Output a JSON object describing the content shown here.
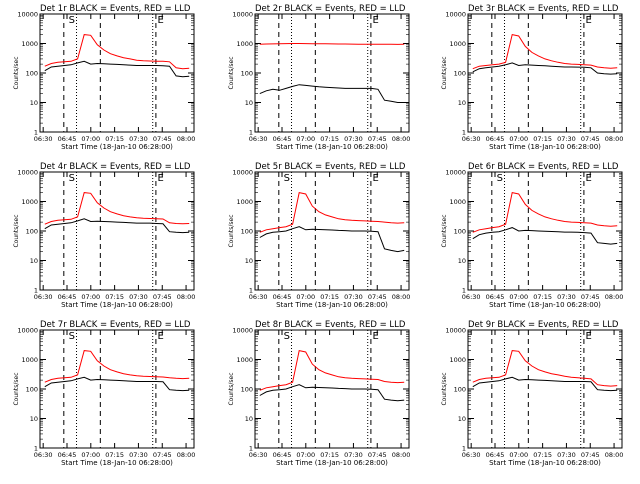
{
  "panels": [
    {
      "title": "Det 1r  BLACK = Events, RED = LLD",
      "marker_left": "S",
      "marker_right": "E",
      "event_shape": [
        120,
        160,
        170,
        180,
        190,
        220,
        250,
        200,
        210,
        205,
        200,
        195,
        190,
        185,
        180,
        180,
        180,
        180,
        175,
        170,
        80,
        75,
        78
      ],
      "lld_shape": [
        170,
        210,
        230,
        240,
        250,
        300,
        2000,
        1900,
        900,
        600,
        450,
        380,
        330,
        300,
        270,
        260,
        255,
        250,
        250,
        240,
        150,
        140,
        145
      ]
    },
    {
      "title": "Det 2r  BLACK = Events, RED = LLD",
      "marker_left": "",
      "marker_right": "E",
      "event_shape": [
        20,
        25,
        28,
        26,
        30,
        35,
        40,
        38,
        36,
        34,
        33,
        32,
        31,
        30,
        30,
        30,
        30,
        30,
        28,
        12,
        11,
        10,
        10
      ],
      "lld_shape": [
        950,
        960,
        970,
        980,
        990,
        1000,
        1000,
        990,
        985,
        980,
        975,
        970,
        965,
        960,
        955,
        950,
        950,
        950,
        945,
        940,
        940,
        935,
        940
      ]
    },
    {
      "title": "Det 3r  BLACK = Events, RED = LLD",
      "marker_left": "",
      "marker_right": "E",
      "event_shape": [
        110,
        140,
        150,
        160,
        170,
        190,
        220,
        180,
        190,
        185,
        180,
        175,
        170,
        165,
        160,
        160,
        158,
        156,
        150,
        100,
        95,
        92,
        95
      ],
      "lld_shape": [
        140,
        170,
        180,
        190,
        200,
        230,
        2000,
        1800,
        800,
        500,
        380,
        300,
        260,
        230,
        210,
        200,
        195,
        190,
        185,
        160,
        150,
        145,
        150
      ]
    },
    {
      "title": "Det 4r  BLACK = Events, RED = LLD",
      "marker_left": "S",
      "marker_right": "E",
      "event_shape": [
        120,
        160,
        170,
        180,
        190,
        220,
        260,
        210,
        215,
        210,
        205,
        200,
        195,
        190,
        185,
        185,
        185,
        180,
        175,
        95,
        90,
        88,
        90
      ],
      "lld_shape": [
        170,
        210,
        230,
        240,
        250,
        300,
        2000,
        1900,
        900,
        600,
        450,
        380,
        330,
        300,
        280,
        270,
        265,
        260,
        255,
        190,
        180,
        175,
        180
      ]
    },
    {
      "title": "Det 5r  BLACK = Events, RED = LLD",
      "marker_left": "S",
      "marker_right": "E",
      "event_shape": [
        60,
        80,
        90,
        95,
        100,
        120,
        140,
        110,
        115,
        112,
        110,
        108,
        105,
        103,
        100,
        100,
        100,
        98,
        95,
        25,
        22,
        20,
        22
      ],
      "lld_shape": [
        90,
        110,
        120,
        130,
        140,
        170,
        2000,
        1800,
        700,
        450,
        350,
        300,
        260,
        240,
        230,
        225,
        220,
        215,
        210,
        200,
        190,
        185,
        190
      ]
    },
    {
      "title": "Det 6r  BLACK = Events, RED = LLD",
      "marker_left": "S",
      "marker_right": "E",
      "event_shape": [
        55,
        75,
        85,
        90,
        95,
        110,
        130,
        100,
        105,
        103,
        100,
        98,
        96,
        94,
        92,
        92,
        90,
        88,
        85,
        40,
        38,
        36,
        38
      ],
      "lld_shape": [
        90,
        110,
        120,
        130,
        140,
        170,
        2000,
        1800,
        800,
        500,
        380,
        300,
        260,
        230,
        210,
        200,
        195,
        190,
        185,
        160,
        150,
        145,
        150
      ]
    },
    {
      "title": "Det 7r  BLACK = Events, RED = LLD",
      "marker_left": "S",
      "marker_right": "E",
      "event_shape": [
        120,
        160,
        170,
        180,
        190,
        220,
        250,
        200,
        210,
        205,
        200,
        195,
        190,
        185,
        180,
        180,
        180,
        180,
        175,
        95,
        90,
        88,
        90
      ],
      "lld_shape": [
        170,
        210,
        230,
        240,
        250,
        300,
        2000,
        1900,
        900,
        600,
        450,
        380,
        330,
        300,
        280,
        270,
        265,
        260,
        255,
        240,
        230,
        225,
        230
      ]
    },
    {
      "title": "Det 8r  BLACK = Events, RED = LLD",
      "marker_left": "S",
      "marker_right": "E",
      "event_shape": [
        60,
        80,
        90,
        95,
        100,
        120,
        140,
        110,
        115,
        112,
        110,
        108,
        105,
        103,
        100,
        100,
        100,
        98,
        95,
        45,
        42,
        40,
        42
      ],
      "lld_shape": [
        90,
        110,
        120,
        130,
        140,
        170,
        2000,
        1800,
        700,
        450,
        350,
        300,
        260,
        240,
        230,
        225,
        220,
        215,
        210,
        180,
        170,
        165,
        170
      ]
    },
    {
      "title": "Det 9r  BLACK = Events, RED = LLD",
      "marker_left": "",
      "marker_right": "E",
      "event_shape": [
        120,
        160,
        170,
        180,
        190,
        220,
        250,
        200,
        210,
        205,
        200,
        195,
        190,
        185,
        180,
        180,
        180,
        180,
        175,
        95,
        90,
        88,
        90
      ],
      "lld_shape": [
        170,
        210,
        230,
        240,
        250,
        300,
        2000,
        1900,
        900,
        600,
        450,
        380,
        330,
        300,
        270,
        250,
        240,
        230,
        220,
        140,
        130,
        125,
        130
      ]
    }
  ],
  "xlabel": "Start Time (18-Jan-10 06:28:00)",
  "ylabel": "Counts/sec",
  "xticks": [
    "06:30",
    "06:45",
    "07:00",
    "07:15",
    "07:30",
    "07:45",
    "08:00"
  ],
  "yticks": [
    "1",
    "10",
    "100",
    "1000",
    "10000"
  ],
  "chart_data": {
    "type": "line",
    "yscale": "log",
    "ylim": [
      1,
      10000
    ],
    "x_start": "06:28",
    "x_end": "08:05",
    "colors": {
      "events": "#000000",
      "lld": "#ff0000"
    }
  }
}
